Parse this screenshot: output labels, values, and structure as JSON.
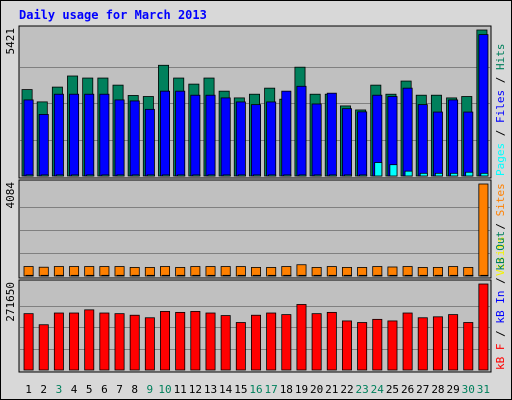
{
  "chart_data": {
    "type": "bar",
    "title": "Daily usage for March 2013",
    "categories": [
      "1",
      "2",
      "3",
      "4",
      "5",
      "6",
      "7",
      "8",
      "9",
      "10",
      "11",
      "12",
      "13",
      "14",
      "15",
      "16",
      "17",
      "18",
      "19",
      "20",
      "21",
      "22",
      "23",
      "24",
      "25",
      "26",
      "27",
      "28",
      "29",
      "30",
      "31"
    ],
    "weekend_days": [
      "3",
      "9",
      "10",
      "16",
      "17",
      "23",
      "24",
      "30",
      "31"
    ],
    "colors": {
      "title": "#0000ff",
      "hits": "#00805c",
      "pages": "#00ffff",
      "files": "#0000ff",
      "visits": "#f4f400",
      "sites": "#ff8000",
      "kb_in": "#0000ff",
      "kb_out": "#00805c",
      "kb_f": "#ff0000",
      "weekday_label": "#000000",
      "weekend_label": "#00805c",
      "panel_bg": "#c0c0c0",
      "border": "#ff0000",
      "background": "#d8d8d8"
    },
    "panels": [
      {
        "id": "top",
        "max_label": "5421",
        "ymax": 5421,
        "right_label": [
          {
            "text": "Pages",
            "color": "#00ffff"
          },
          {
            "text": " / ",
            "color": "#000000"
          },
          {
            "text": "Files",
            "color": "#0000ff"
          },
          {
            "text": " / ",
            "color": "#000000"
          },
          {
            "text": "Hits",
            "color": "#00805c"
          }
        ],
        "series": [
          {
            "name": "Hits",
            "color": "#00805c",
            "values": [
              3209,
              2752,
              3301,
              3713,
              3637,
              3637,
              3374,
              2990,
              2952,
              4111,
              3637,
              3412,
              3637,
              3150,
              2900,
              3037,
              3262,
              2852,
              4040,
              3037,
              3037,
              2602,
              2452,
              3374,
              3037,
              3525,
              3000,
              3000,
              2900,
              2952,
              5421
            ]
          },
          {
            "name": "Files",
            "color": "#0000ff",
            "values": [
              2825,
              2287,
              3037,
              3037,
              3037,
              3037,
              2825,
              2787,
              2475,
              3150,
              3150,
              3000,
              3000,
              2900,
              2750,
              2650,
              2750,
              3150,
              3331,
              2675,
              3075,
              2500,
              2382,
              3000,
              2952,
              3262,
              2650,
              2375,
              2825,
              2375,
              5250
            ]
          },
          {
            "name": "Pages",
            "color": "#00ffff",
            "values": [
              40,
              40,
              40,
              40,
              40,
              40,
              40,
              40,
              40,
              40,
              40,
              40,
              40,
              40,
              40,
              40,
              40,
              40,
              40,
              40,
              40,
              40,
              40,
              500,
              420,
              180,
              100,
              100,
              100,
              140,
              100
            ]
          }
        ]
      },
      {
        "id": "middle",
        "max_label": "4084",
        "ymax": 4084,
        "right_label": [
          {
            "text": "Visits",
            "color": "#f4f400"
          },
          {
            "text": " / ",
            "color": "#000000"
          },
          {
            "text": "Sites",
            "color": "#ff8000"
          }
        ],
        "series": [
          {
            "name": "Sites",
            "color": "#ff8000",
            "values": [
              420,
              390,
              420,
              420,
              420,
              420,
              420,
              380,
              380,
              420,
              380,
              420,
              420,
              420,
              420,
              380,
              380,
              420,
              500,
              380,
              420,
              380,
              380,
              420,
              400,
              420,
              380,
              380,
              420,
              380,
              4084
            ]
          },
          {
            "name": "Visits",
            "color": "#f4f400",
            "values": [
              30,
              30,
              30,
              30,
              30,
              30,
              30,
              30,
              30,
              30,
              30,
              30,
              30,
              30,
              30,
              30,
              30,
              30,
              30,
              30,
              30,
              30,
              30,
              30,
              30,
              30,
              30,
              30,
              30,
              30,
              30
            ]
          }
        ]
      },
      {
        "id": "bottom",
        "max_label": "271650",
        "ymax": 271650,
        "right_label": [
          {
            "text": "kB F",
            "color": "#ff0000"
          },
          {
            "text": " / ",
            "color": "#000000"
          },
          {
            "text": "kB In",
            "color": "#0000ff"
          },
          {
            "text": " / ",
            "color": "#000000"
          },
          {
            "text": "kB Out",
            "color": "#00805c"
          }
        ],
        "series": [
          {
            "name": "kB F",
            "color": "#ff0000",
            "values": [
              178000,
              143000,
              180000,
              180000,
              190000,
              180000,
              178000,
              173000,
              165000,
              185000,
              182000,
              185000,
              180000,
              172000,
              150000,
              173000,
              180000,
              175000,
              207000,
              178000,
              182000,
              155000,
              150000,
              160000,
              155000,
              180000,
              165000,
              168000,
              175000,
              150000,
              271650
            ]
          }
        ]
      }
    ],
    "xlabel": "",
    "ylabel": ""
  }
}
